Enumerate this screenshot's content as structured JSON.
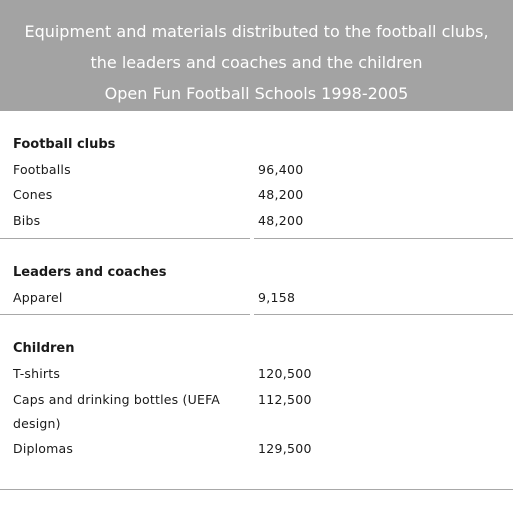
{
  "header": {
    "line1": "Equipment and materials distributed to the football clubs,",
    "line2": "the leaders and coaches and the children",
    "line3": "Open Fun Football Schools 1998-2005"
  },
  "sections": [
    {
      "title": "Football clubs",
      "rows": [
        {
          "label": "Footballs",
          "value": "96,400"
        },
        {
          "label": "Cones",
          "value": "48,200"
        },
        {
          "label": "Bibs",
          "value": "48,200"
        }
      ]
    },
    {
      "title": "Leaders and coaches",
      "rows": [
        {
          "label": "Apparel",
          "value": "9,158"
        }
      ]
    },
    {
      "title": "Children",
      "rows": [
        {
          "label": "T-shirts",
          "value": "120,500"
        },
        {
          "label": "Caps and drinking bottles (UEFA design)",
          "value": "112,500"
        },
        {
          "label": "Diplomas",
          "value": "129,500"
        }
      ]
    }
  ]
}
